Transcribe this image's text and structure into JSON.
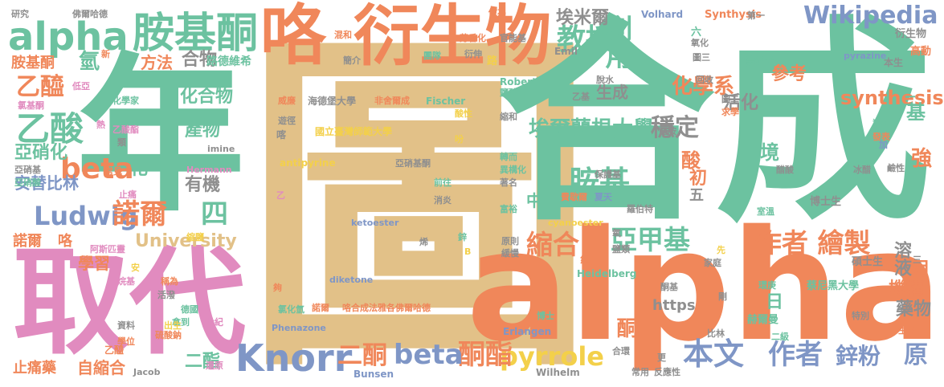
{
  "palette": {
    "green": "#6cc2a0",
    "orange": "#f0875a",
    "tan": "#e2c188",
    "pink": "#e18bbf",
    "blue": "#7f96c6",
    "lime": "#a8cf55",
    "yellow": "#f3d04a",
    "gray": "#8f8f8f"
  },
  "words": [
    {
      "text": "圖",
      "color": "tan"
    },
    {
      "text": "合成",
      "color": "green"
    },
    {
      "text": "alpha",
      "color": "orange"
    },
    {
      "text": "年",
      "color": "green"
    },
    {
      "text": "取代",
      "color": "pink"
    },
    {
      "text": "衍生物",
      "color": "orange"
    },
    {
      "text": "咯",
      "color": "orange"
    },
    {
      "text": "胺基酮",
      "color": "green"
    },
    {
      "text": "alpha",
      "color": "green"
    },
    {
      "text": "教授",
      "color": "green"
    },
    {
      "text": "利用",
      "color": "green"
    },
    {
      "text": "Wikipedia",
      "color": "blue"
    },
    {
      "text": "Knorr",
      "color": "blue"
    },
    {
      "text": "作者 繪製",
      "color": "orange"
    },
    {
      "text": "亞甲基",
      "color": "green"
    },
    {
      "text": "縮合",
      "color": "orange"
    },
    {
      "text": "本文",
      "color": "blue"
    },
    {
      "text": "作者",
      "color": "blue"
    },
    {
      "text": "pyrrole",
      "color": "yellow"
    },
    {
      "text": "酮酯",
      "color": "orange"
    },
    {
      "text": "beta",
      "color": "blue"
    },
    {
      "text": "二酮",
      "color": "orange"
    },
    {
      "text": "乙酸",
      "color": "green"
    },
    {
      "text": "乙醯",
      "color": "orange"
    },
    {
      "text": "beta",
      "color": "orange"
    },
    {
      "text": "Ludwig",
      "color": "blue"
    },
    {
      "text": "諾爾",
      "color": "orange"
    },
    {
      "text": "胺基",
      "color": "green"
    },
    {
      "text": "埃爾蘭根大學",
      "color": "green"
    },
    {
      "text": "穩定",
      "color": "gray"
    },
    {
      "text": "化學系",
      "color": "orange"
    },
    {
      "text": "埃米爾",
      "color": "gray"
    },
    {
      "text": "參考",
      "color": "orange"
    },
    {
      "text": "synthesis",
      "color": "orange"
    },
    {
      "text": "環境",
      "color": "green"
    },
    {
      "text": "活化",
      "color": "gray"
    },
    {
      "text": "鋅粉",
      "color": "blue"
    },
    {
      "text": "原",
      "color": "blue"
    },
    {
      "text": "溶液",
      "color": "gray"
    },
    {
      "text": "藥物",
      "color": "gray"
    },
    {
      "text": "機構",
      "color": "orange"
    },
    {
      "text": "酮",
      "color": "orange"
    },
    {
      "text": "https",
      "color": "gray"
    },
    {
      "text": "University",
      "color": "tan"
    },
    {
      "text": "安替比林",
      "color": "blue"
    },
    {
      "text": "亞硝化",
      "color": "green"
    },
    {
      "text": "學習",
      "color": "orange"
    },
    {
      "text": "自縮合",
      "color": "orange"
    },
    {
      "text": "止痛藥",
      "color": "orange"
    },
    {
      "text": "諾爾",
      "color": "orange"
    },
    {
      "text": "咯",
      "color": "orange"
    },
    {
      "text": "胺基酮",
      "color": "orange"
    },
    {
      "text": "乙醯",
      "color": "orange"
    },
    {
      "text": "氫",
      "color": "green"
    },
    {
      "text": "化合物",
      "color": "green"
    },
    {
      "text": "產物",
      "color": "green"
    },
    {
      "text": "有機",
      "color": "gray"
    },
    {
      "text": "方法",
      "color": "orange"
    },
    {
      "text": "合物",
      "color": "gray"
    },
    {
      "text": "生成",
      "color": "gray"
    },
    {
      "text": "四",
      "color": "green"
    },
    {
      "text": "五",
      "color": "gray"
    },
    {
      "text": "日",
      "color": "green"
    },
    {
      "text": "月",
      "color": "orange"
    },
    {
      "text": "酸",
      "color": "orange"
    },
    {
      "text": "基",
      "color": "green"
    },
    {
      "text": "二",
      "color": "green"
    },
    {
      "text": "初",
      "color": "orange"
    },
    {
      "text": "中",
      "color": "green"
    },
    {
      "text": "化",
      "color": "green"
    },
    {
      "text": "強",
      "color": "orange"
    },
    {
      "text": "二酯",
      "color": "green"
    },
    {
      "text": "國立臺灣師範大學",
      "color": "yellow"
    },
    {
      "text": "海德堡大學",
      "color": "gray"
    },
    {
      "text": "路德維希",
      "color": "green"
    },
    {
      "text": "德維希",
      "color": "green"
    },
    {
      "text": "蔡尼黑大學",
      "color": "green"
    },
    {
      "text": "赫爾曼",
      "color": "green"
    },
    {
      "text": "碩士生",
      "color": "gray"
    },
    {
      "text": "博士生",
      "color": "gray"
    },
    {
      "text": "Volhard",
      "color": "blue"
    },
    {
      "text": "Synthysis",
      "color": "orange"
    },
    {
      "text": "Heidelberg",
      "color": "green"
    },
    {
      "text": "Erlangen",
      "color": "blue"
    },
    {
      "text": "Bunsen",
      "color": "blue"
    },
    {
      "text": "Wilhelm",
      "color": "gray"
    },
    {
      "text": "Jacob",
      "color": "gray"
    },
    {
      "text": "Hermann",
      "color": "pink"
    },
    {
      "text": "Robert",
      "color": "green"
    },
    {
      "text": "Fischer",
      "color": "green"
    },
    {
      "text": "Emil",
      "color": "gray"
    },
    {
      "text": "antipyrine",
      "color": "yellow"
    },
    {
      "text": "ketoester",
      "color": "blue"
    },
    {
      "text": "diketone",
      "color": "blue"
    },
    {
      "text": "cyanoester",
      "color": "yellow"
    },
    {
      "text": "Phenazone",
      "color": "blue"
    },
    {
      "text": "imine",
      "color": "gray"
    },
    {
      "text": "pyrazine",
      "color": "blue"
    },
    {
      "text": "衍生物",
      "color": "gray"
    },
    {
      "text": "高動",
      "color": "orange"
    },
    {
      "text": "本生",
      "color": "gray"
    },
    {
      "text": "德維希",
      "color": "green"
    },
    {
      "text": "回收",
      "color": "gray"
    },
    {
      "text": "第一",
      "color": "gray"
    },
    {
      "text": "做為",
      "color": "orange"
    },
    {
      "text": "六",
      "color": "green"
    },
    {
      "text": "氧化",
      "color": "gray"
    },
    {
      "text": "官能基",
      "color": "gray"
    },
    {
      "text": "芳香化",
      "color": "orange"
    },
    {
      "text": "衍伸",
      "color": "gray"
    },
    {
      "text": "簡介",
      "color": "gray"
    },
    {
      "text": "團隊",
      "color": "green"
    },
    {
      "text": "混和",
      "color": "orange"
    },
    {
      "text": "研究",
      "color": "gray"
    },
    {
      "text": "佛爾哈德",
      "color": "gray"
    },
    {
      "text": "非舍爾成",
      "color": "orange"
    },
    {
      "text": "威廉",
      "color": "orange"
    },
    {
      "text": "遊徑",
      "color": "gray"
    },
    {
      "text": "亞硝基酮",
      "color": "gray"
    },
    {
      "text": "前往",
      "color": "green"
    },
    {
      "text": "消炎",
      "color": "gray"
    },
    {
      "text": "氯化氫",
      "color": "green"
    },
    {
      "text": "諾爾",
      "color": "orange"
    },
    {
      "text": "咯合成法雅各佛爾哈德",
      "color": "orange"
    },
    {
      "text": "德國",
      "color": "green"
    },
    {
      "text": "世紀",
      "color": "pink"
    },
    {
      "text": "拿到",
      "color": "green"
    },
    {
      "text": "出生",
      "color": "yellow"
    },
    {
      "text": "硫酸鈉",
      "color": "orange"
    },
    {
      "text": "還原",
      "color": "pink"
    },
    {
      "text": "學位",
      "color": "orange"
    },
    {
      "text": "資料",
      "color": "gray"
    },
    {
      "text": "活潑",
      "color": "gray"
    },
    {
      "text": "稱為",
      "color": "orange"
    },
    {
      "text": "烷基",
      "color": "pink"
    },
    {
      "text": "阿斯匹靈",
      "color": "pink"
    },
    {
      "text": "縮鹽",
      "color": "yellow"
    },
    {
      "text": "止痛",
      "color": "pink"
    },
    {
      "text": "常見",
      "color": "orange"
    },
    {
      "text": "類",
      "color": "gray"
    },
    {
      "text": "乙酸酯",
      "color": "pink"
    },
    {
      "text": "化學家",
      "color": "green"
    },
    {
      "text": "低亞",
      "color": "pink"
    },
    {
      "text": "氯基酮",
      "color": "pink"
    },
    {
      "text": "亞硝基",
      "color": "gray"
    },
    {
      "text": "亞硝酸",
      "color": "green"
    },
    {
      "text": "新",
      "color": "orange"
    },
    {
      "text": "熱",
      "color": "pink"
    },
    {
      "text": "安",
      "color": "yellow"
    },
    {
      "text": "亞胺",
      "color": "gray"
    },
    {
      "text": "吩",
      "color": "yellow"
    },
    {
      "text": "酸性",
      "color": "yellow"
    },
    {
      "text": "縮和",
      "color": "gray"
    },
    {
      "text": "轉而",
      "color": "green"
    },
    {
      "text": "異構化",
      "color": "green"
    },
    {
      "text": "著名",
      "color": "gray"
    },
    {
      "text": "費歇爾",
      "color": "orange"
    },
    {
      "text": "夏天",
      "color": "blue"
    },
    {
      "text": "富裕",
      "color": "green"
    },
    {
      "text": "羅伯特",
      "color": "gray"
    },
    {
      "text": "室溫",
      "color": "green"
    },
    {
      "text": "保護基",
      "color": "gray"
    },
    {
      "text": "脫水",
      "color": "gray"
    },
    {
      "text": "乙基",
      "color": "gray"
    },
    {
      "text": "求學",
      "color": "orange"
    },
    {
      "text": "導致",
      "color": "green"
    },
    {
      "text": "發表",
      "color": "orange"
    },
    {
      "text": "加",
      "color": "blue"
    },
    {
      "text": "鹼性",
      "color": "gray"
    },
    {
      "text": "冰醋",
      "color": "gray"
    },
    {
      "text": "醋酸",
      "color": "gray"
    },
    {
      "text": "環庚",
      "color": "green"
    },
    {
      "text": "剛",
      "color": "gray"
    },
    {
      "text": "特別",
      "color": "gray"
    },
    {
      "text": "生平",
      "color": "orange"
    },
    {
      "text": "二級",
      "color": "green"
    },
    {
      "text": "比林",
      "color": "gray"
    },
    {
      "text": "博士",
      "color": "green"
    },
    {
      "text": "常用",
      "color": "gray"
    },
    {
      "text": "反應性",
      "color": "gray"
    },
    {
      "text": "更",
      "color": "gray"
    },
    {
      "text": "合環",
      "color": "gray"
    },
    {
      "text": "家庭",
      "color": "gray"
    },
    {
      "text": "鹽類",
      "color": "gray"
    },
    {
      "text": "緩慢",
      "color": "gray"
    },
    {
      "text": "原則",
      "color": "gray"
    },
    {
      "text": "氮",
      "color": "orange"
    },
    {
      "text": "氧",
      "color": "gray"
    },
    {
      "text": "先",
      "color": "yellow"
    },
    {
      "text": "酮基",
      "color": "gray"
    },
    {
      "text": "圖三",
      "color": "gray"
    },
    {
      "text": "圖二",
      "color": "gray"
    },
    {
      "text": "鹽酸",
      "color": "green"
    },
    {
      "text": "鋅",
      "color": "green"
    },
    {
      "text": "B",
      "color": "yellow"
    },
    {
      "text": "烯",
      "color": "gray"
    },
    {
      "text": "夠",
      "color": "orange"
    },
    {
      "text": "乙",
      "color": "pink"
    },
    {
      "text": "三",
      "color": "gray"
    },
    {
      "text": "路",
      "color": "yellow"
    },
    {
      "text": "喀",
      "color": "gray"
    }
  ]
}
